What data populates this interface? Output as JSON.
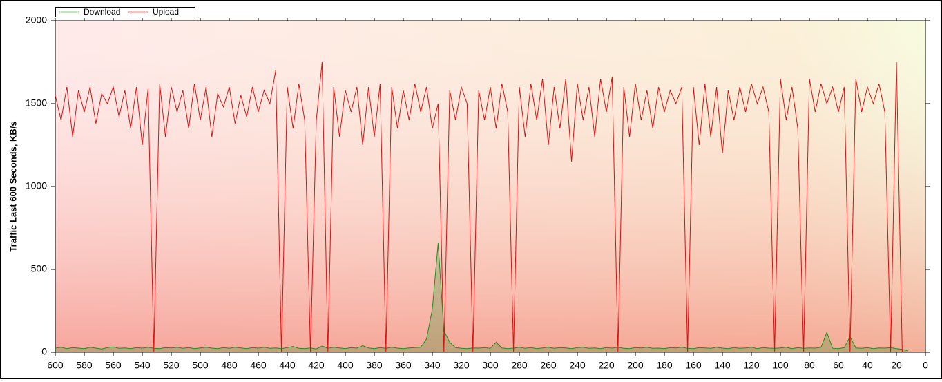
{
  "chart_data": {
    "type": "line",
    "y_label": "Traffic Last 600 Seconds, KB/s",
    "xlim": [
      600,
      0
    ],
    "ylim": [
      0,
      2000
    ],
    "xticks": [
      600,
      580,
      560,
      540,
      520,
      500,
      480,
      460,
      440,
      420,
      400,
      380,
      360,
      340,
      320,
      300,
      280,
      260,
      240,
      220,
      200,
      180,
      160,
      140,
      120,
      100,
      80,
      60,
      40,
      20,
      0
    ],
    "yticks": [
      0,
      500,
      1000,
      1500,
      2000
    ],
    "legend": "top-left",
    "x": [
      600,
      596,
      592,
      588,
      584,
      580,
      576,
      572,
      568,
      564,
      560,
      556,
      552,
      548,
      544,
      540,
      536,
      532,
      528,
      524,
      520,
      516,
      512,
      508,
      504,
      500,
      496,
      492,
      488,
      484,
      480,
      476,
      472,
      468,
      464,
      460,
      456,
      452,
      448,
      444,
      440,
      436,
      432,
      428,
      424,
      420,
      416,
      412,
      408,
      404,
      400,
      396,
      392,
      388,
      384,
      380,
      376,
      372,
      368,
      364,
      360,
      356,
      352,
      348,
      344,
      340,
      336,
      332,
      328,
      324,
      320,
      316,
      312,
      308,
      304,
      300,
      296,
      292,
      288,
      284,
      280,
      276,
      272,
      268,
      264,
      260,
      256,
      252,
      248,
      244,
      240,
      236,
      232,
      228,
      224,
      220,
      216,
      212,
      208,
      204,
      200,
      196,
      192,
      188,
      184,
      180,
      176,
      172,
      168,
      164,
      160,
      156,
      152,
      148,
      144,
      140,
      136,
      132,
      128,
      124,
      120,
      116,
      112,
      108,
      104,
      100,
      96,
      92,
      88,
      84,
      80,
      76,
      72,
      68,
      64,
      60,
      56,
      52,
      48,
      44,
      40,
      36,
      32,
      28,
      24,
      20,
      16,
      12
    ],
    "series": [
      {
        "name": "Download",
        "color": "#1f8f1f",
        "values": [
          25,
          30,
          22,
          28,
          25,
          22,
          30,
          25,
          20,
          28,
          32,
          24,
          26,
          22,
          28,
          25,
          30,
          24,
          22,
          28,
          26,
          30,
          24,
          28,
          22,
          26,
          30,
          25,
          22,
          28,
          24,
          30,
          26,
          22,
          28,
          25,
          30,
          24,
          26,
          22,
          28,
          35,
          24,
          22,
          26,
          20,
          38,
          24,
          30,
          26,
          22,
          28,
          25,
          40,
          26,
          22,
          28,
          24,
          30,
          25,
          22,
          26,
          28,
          30,
          80,
          260,
          658,
          130,
          60,
          28,
          24,
          22,
          26,
          25,
          28,
          24,
          60,
          26,
          22,
          25,
          30,
          24,
          28,
          22,
          26,
          30,
          24,
          28,
          26,
          22,
          28,
          30,
          24,
          26,
          22,
          28,
          25,
          30,
          24,
          22,
          28,
          26,
          30,
          24,
          25,
          22,
          28,
          26,
          30,
          24,
          22,
          28,
          26,
          24,
          30,
          25,
          22,
          28,
          24,
          26,
          30,
          22,
          28,
          25,
          24,
          26,
          30,
          22,
          28,
          24,
          26,
          25,
          30,
          120,
          24,
          22,
          28,
          95,
          26,
          24,
          28,
          22,
          26,
          25,
          28,
          22,
          18,
          10
        ]
      },
      {
        "name": "Upload",
        "color": "#e01010",
        "values": [
          1550,
          1400,
          1600,
          1300,
          1580,
          1450,
          1600,
          1380,
          1560,
          1500,
          1600,
          1420,
          1580,
          1350,
          1600,
          1250,
          1590,
          0,
          1620,
          1300,
          1600,
          1450,
          1580,
          1350,
          1620,
          1400,
          1600,
          1300,
          1560,
          1480,
          1600,
          1380,
          1550,
          1420,
          1600,
          1450,
          1580,
          1500,
          1700,
          0,
          1600,
          1350,
          1620,
          1400,
          0,
          1400,
          1750,
          0,
          1600,
          1300,
          1580,
          1450,
          1600,
          1250,
          1600,
          1300,
          1620,
          0,
          1600,
          1350,
          1580,
          1400,
          1620,
          1450,
          1600,
          1350,
          1500,
          0,
          1580,
          1400,
          1600,
          1500,
          0,
          1580,
          1400,
          1600,
          1350,
          1620,
          1450,
          0,
          1600,
          1300,
          1620,
          1400,
          1650,
          1250,
          1600,
          1350,
          1650,
          1150,
          1620,
          1400,
          1600,
          1300,
          1650,
          1450,
          1660,
          0,
          1600,
          1300,
          1620,
          1400,
          1580,
          1350,
          1600,
          1450,
          1580,
          1500,
          1600,
          0,
          1600,
          1250,
          1620,
          1300,
          1600,
          1200,
          1580,
          1400,
          1600,
          1450,
          1620,
          1500,
          1600,
          1450,
          0,
          1650,
          1400,
          1600,
          1350,
          0,
          1650,
          1450,
          1620,
          1500,
          1600,
          1450,
          1600,
          0,
          1650,
          1450,
          1600,
          1500,
          1620,
          1450,
          0,
          1750,
          0,
          null
        ]
      }
    ]
  }
}
